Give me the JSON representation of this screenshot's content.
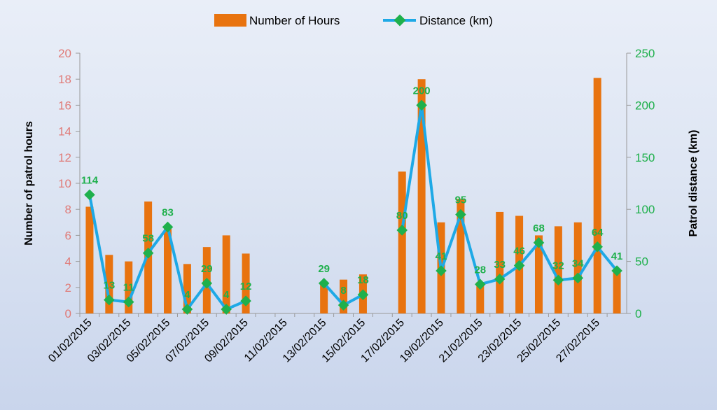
{
  "chart_data": {
    "type": "bar",
    "legend_position": "top",
    "grid": false,
    "x_tick_labels": [
      "01/02/2015",
      "03/02/2015",
      "05/02/2015",
      "07/02/2015",
      "09/02/2015",
      "11/02/2015",
      "13/02/2015",
      "15/02/2015",
      "17/02/2015",
      "19/02/2015",
      "21/02/2015",
      "23/02/2015",
      "25/02/2015",
      "27/02/2015"
    ],
    "x": [
      "01/02/2015",
      "02/02/2015",
      "03/02/2015",
      "04/02/2015",
      "05/02/2015",
      "06/02/2015",
      "07/02/2015",
      "08/02/2015",
      "09/02/2015",
      "10/02/2015",
      "11/02/2015",
      "12/02/2015",
      "13/02/2015",
      "14/02/2015",
      "15/02/2015",
      "16/02/2015",
      "17/02/2015",
      "18/02/2015",
      "19/02/2015",
      "20/02/2015",
      "21/02/2015",
      "22/02/2015",
      "23/02/2015",
      "24/02/2015",
      "25/02/2015",
      "26/02/2015",
      "27/02/2015",
      "28/02/2015"
    ],
    "ylabel_left": "Number of patrol hours",
    "ylabel_right": "Patrol distance (km)",
    "ylim_left": [
      0,
      20
    ],
    "ylim_right": [
      0,
      250
    ],
    "yticks_left": [
      "0",
      "2",
      "4",
      "6",
      "8",
      "10",
      "12",
      "14",
      "16",
      "18",
      "20"
    ],
    "yticks_right": [
      "0",
      "50",
      "100",
      "150",
      "200",
      "250"
    ],
    "series": [
      {
        "name": "Number of Hours",
        "type": "bar",
        "axis": "left",
        "color": "#e8730f",
        "values": [
          8.2,
          4.5,
          4.0,
          8.6,
          6.5,
          3.8,
          5.1,
          6.0,
          4.6,
          null,
          null,
          null,
          2.4,
          2.6,
          3.0,
          null,
          10.9,
          18.0,
          7.0,
          8.8,
          2.4,
          7.8,
          7.5,
          6.0,
          6.7,
          7.0,
          18.1,
          3.4
        ]
      },
      {
        "name": "Distance (km)",
        "type": "line",
        "axis": "right",
        "color": "#1ea9e6",
        "marker_color": "#1fb04c",
        "values": [
          114,
          13,
          11,
          58,
          83,
          4,
          29,
          4,
          12,
          null,
          null,
          null,
          29,
          8,
          18,
          null,
          80,
          200,
          41,
          95,
          28,
          33,
          46,
          68,
          32,
          34,
          64,
          41
        ],
        "data_labels": [
          "114",
          "13",
          "11",
          "58",
          "83",
          "4",
          "29",
          "4",
          "12",
          null,
          null,
          null,
          "29",
          "8",
          "18",
          null,
          "80",
          "200",
          "41",
          "95",
          "28",
          "33",
          "46",
          "68",
          "32",
          "34",
          "64",
          "41"
        ]
      }
    ]
  }
}
